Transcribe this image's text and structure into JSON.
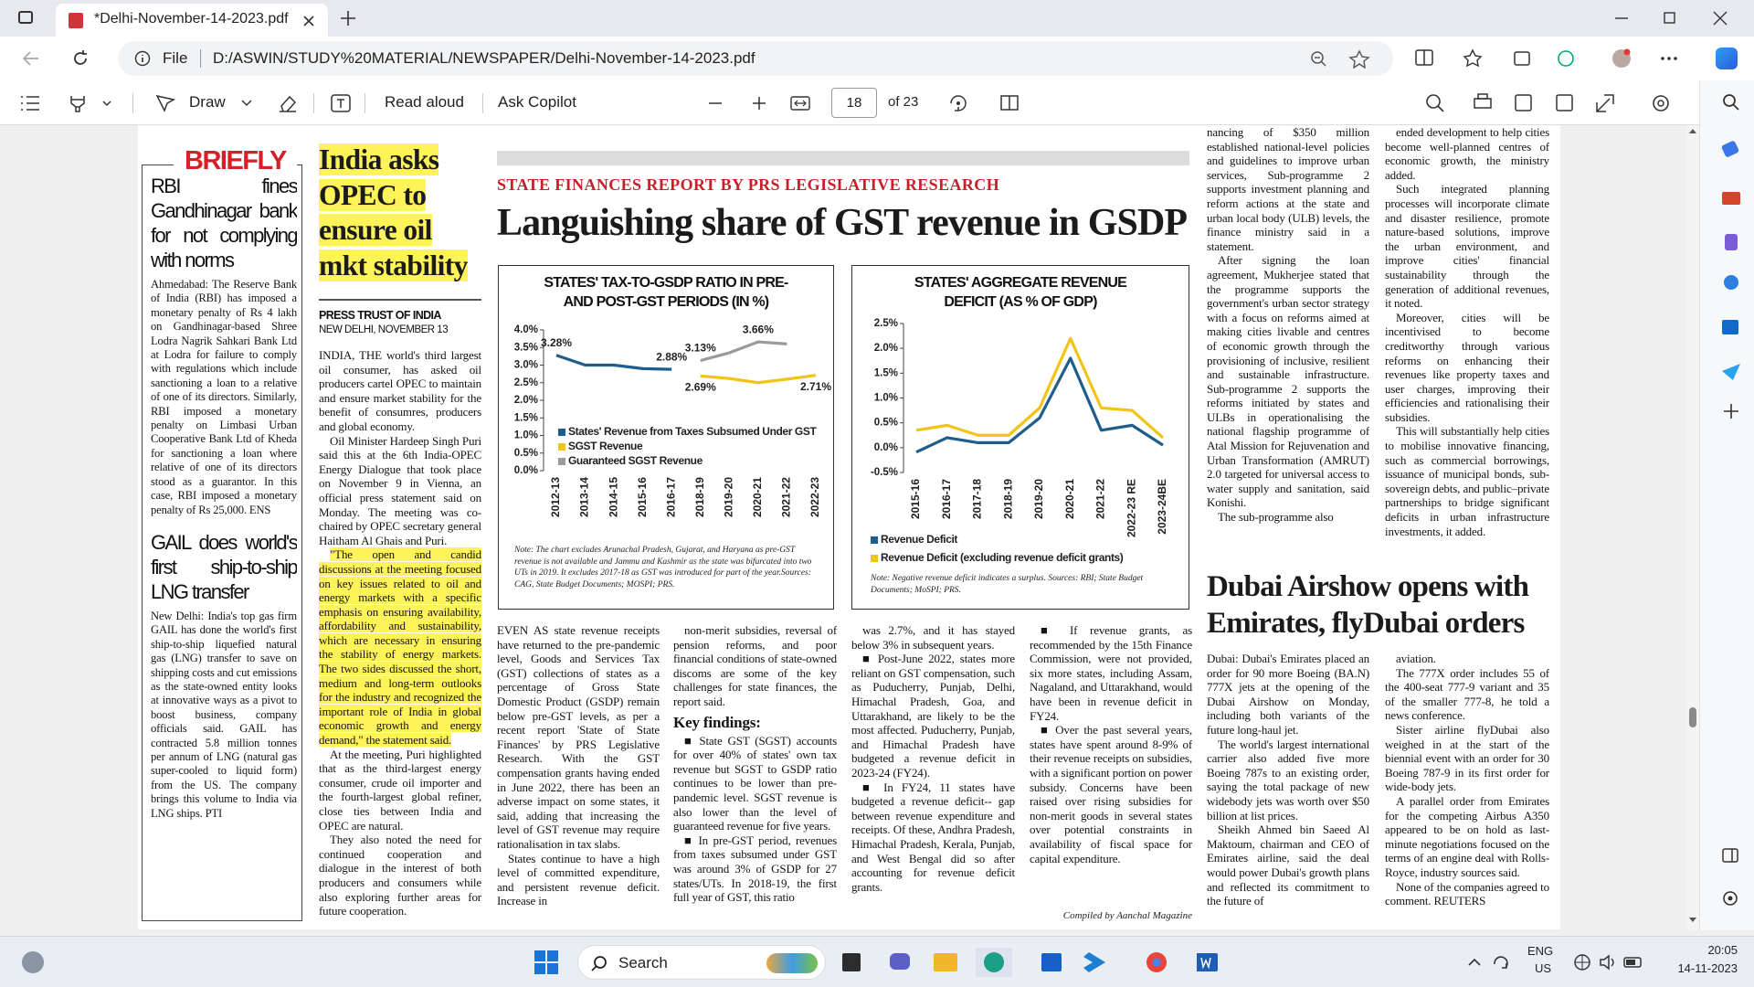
{
  "browser": {
    "tab_title": "*Delhi-November-14-2023.pdf",
    "address_label": "File",
    "address": "D:/ASWIN/STUDY%20MATERIAL/NEWSPAPER/Delhi-November-14-2023.pdf"
  },
  "toolbar": {
    "draw": "Draw",
    "read_aloud": "Read aloud",
    "ask_copilot": "Ask Copilot",
    "page_number": "18",
    "page_count": "of 23"
  },
  "newspaper": {
    "briefly": {
      "label": "BRIEFLY",
      "items": [
        {
          "headline": "RBI fines Gandhinagar bank for not complying with norms",
          "body": "Ahmedabad: The Reserve Bank of India (RBI) has imposed a monetary penalty of Rs 4 lakh on Gandhinagar-based Shree Lodra Nagrik Sahkari Bank Ltd at Lodra for failure to comply with regulations which include sanctioning a loan to a relative of one of its directors. Similarly, RBI imposed a monetary penalty on Limbasi Urban Cooperative Bank Ltd of Kheda for sanctioning a loan where relative of one of its directors stood as a guarantor. In this case, RBI imposed a monetary penalty of Rs 25,000. ENS"
        },
        {
          "headline": "GAIL does world's first ship-to-ship LNG transfer",
          "body": "New Delhi: India's top gas firm GAIL has done the world's first ship-to-ship liquefied natural gas (LNG) transfer to save on shipping costs and cut emissions as the state-owned entity looks at innovative ways as a pivot to boost business, company officials said. GAIL has contracted 5.8 million tonnes per annum of LNG (natural gas super-cooled to liquid form) from the US. The company brings this volume to India via LNG ships. PTI"
        }
      ]
    },
    "opec": {
      "headline": "India asks OPEC to ensure oil mkt stability",
      "byline": "PRESS TRUST OF INDIA",
      "dateline": "NEW DELHI, NOVEMBER 13",
      "paragraphs": [
        "INDIA, THE world's third largest oil consumer, has asked oil producers cartel OPEC to maintain and ensure market stability for the benefit of consumres, producers and global economy.",
        "Oil Minister Hardeep Singh Puri said this at the 6th India-OPEC Energy Dialogue that took place on November 9 in Vienna, an official press statement said on Monday. The meeting was co-chaired by OPEC secretary general Haitham Al Ghais and Puri.",
        "\"The open and candid discussions at the meeting focused on key issues related to oil and energy markets with a specific emphasis on ensuring availability, affordability and sustainability, which are necessary in ensuring the stability of energy markets. The two sides discussed the short, medium and long-term outlooks for the industry and recognized the important role of India in global economic growth and energy demand,\" the statement said.",
        "At the meeting, Puri highlighted that as the third-largest energy consumer, crude oil importer and the fourth-largest global refiner, close ties between India and OPEC are natural.",
        "They also noted the need for continued cooperation and dialogue in the interest of both producers and consumers while also exploring further areas for future cooperation."
      ]
    },
    "gst": {
      "kicker": "STATE FINANCES REPORT BY PRS LEGISLATIVE RESEARCH",
      "headline": "Languishing share of GST revenue in GSDP",
      "key_findings_heading": "Key findings:",
      "credit": "Compiled by Aanchal Magazine",
      "columns": [
        [
          "EVEN AS state revenue receipts have returned to the pre-pandemic level, Goods and Services Tax (GST) collections of states as a percentage of Gross State Domestic Product (GSDP) remain below pre-GST levels, as per a recent report 'State of State Finances' by PRS Legislative Research. With the GST compensation grants having ended in June 2022, there has been an adverse impact on some states, it said, adding that increasing the level of GST revenue may require rationalisation in tax slabs.",
          "States continue to have a high level of committed expenditure, and persistent revenue deficit. Increase in"
        ],
        [
          "non-merit subsidies, reversal of pension reforms, and poor financial conditions of state-owned discoms are some of the key challenges for state finances, the report said.",
          "■ State GST (SGST) accounts for over 40% of states' own tax revenue but SGST to GSDP ratio continues to be lower than pre-pandemic level. SGST revenue is also lower than the level of guaranteed revenue for five years.",
          "■ In pre-GST period, revenues from taxes subsumed under GST was around 3% of GSDP for 27 states/UTs. In 2018-19, the first full year of GST, this ratio"
        ],
        [
          "was 2.7%, and it has stayed below 3% in subsequent years.",
          "■ Post-June 2022, states more reliant on GST compensation, such as Puducherry, Punjab, Delhi, Himachal Pradesh, Goa, and Uttarakhand, are likely to be the most affected. Puducherry, Punjab, and Himachal Pradesh have budgeted a revenue deficit in 2023-24 (FY24).",
          "■ In FY24, 11 states have budgeted a revenue deficit-- gap between revenue expenditure and receipts. Of these, Andhra Pradesh, Himachal Pradesh, Kerala, Punjab, and West Bengal did so after accounting for revenue deficit grants."
        ],
        [
          "■ If revenue grants, as recommended by the 15th Finance Commission, were not provided, six more states, including Assam, Nagaland, and Uttarakhand, would have been in revenue deficit in FY24.",
          "■ Over the past several years, states have spent around 8-9% of their revenue receipts on subsidies, with a significant portion on power subsidy. Concerns have been raised over rising subsidies for non-merit goods in several states over potential constraints in availability of fiscal space for capital expenditure."
        ]
      ]
    },
    "urban": {
      "columns": [
        [
          "nancing of $350 million established national-level policies and guidelines to improve urban services, Sub-programme 2 supports investment planning and reform actions at the state and urban local body (ULB) levels, the finance ministry said in a statement.",
          "After signing the loan agreement, Mukherjee stated that the programme supports the government's urban sector strategy with a focus on reforms aimed at making cities livable and centres of economic growth through the provisioning of inclusive, resilient and sustainable infrastructure. Sub-programme 2 supports the reforms initiated by states and ULBs in operationalising the national flagship programme of Atal Mission for Rejuvenation and Urban Transformation (AMRUT) 2.0 targeted for universal access to water supply and sanitation, said Konishi.",
          "The sub-programme also"
        ],
        [
          "ended development to help cities become well-planned centres of economic growth, the ministry added.",
          "Such integrated planning processes will incorporate climate and disaster resilience, promote nature-based solutions, improve the urban environment, and improve cities' financial sustainability through the generation of additional revenues, it noted.",
          "Moreover, cities will be incentivised to become creditworthy through various reforms on enhancing their revenues like property taxes and user charges, improving their efficiencies and rationalising their subsidies.",
          "This will substantially help cities to mobilise innovative financing, such as commercial borrowings, issuance of municipal bonds, sub-sovereign debts, and public–private partnerships to bridge significant deficits in urban infrastructure investments, it added."
        ]
      ]
    },
    "dubai": {
      "headline": "Dubai Airshow opens with Emirates, flyDubai orders",
      "columns": [
        [
          "Dubai: Dubai's Emirates placed an order for 90 more Boeing (BA.N) 777X jets at the opening of the Dubai Airshow on Monday, including both variants of the future long-haul jet.",
          "The world's largest international carrier also added five more Boeing 787s to an existing order, saying the total package of new widebody jets was worth over $50 billion at list prices.",
          "Sheikh Ahmed bin Saeed Al Maktoum, chairman and CEO of Emirates airline, said the deal would power Dubai's growth plans and reflected its commitment to the future of"
        ],
        [
          "aviation.",
          "The 777X order includes 55 of the 400-seat 777-9 variant and 35 of the smaller 777-8, he told a news conference.",
          "Sister airline flyDubai also weighed in at the start of the biennial event with an order for 30 Boeing 787-9 in its first order for wide-body jets.",
          "A parallel order from Emirates for the competing Airbus A350 appeared to be on hold as last-minute negotiations focused on the terms of an engine deal with Rolls-Royce, industry sources said.",
          "None of the companies agreed to comment. REUTERS"
        ]
      ]
    }
  },
  "chart_data": [
    {
      "type": "line",
      "title": "STATES' TAX-TO-GSDP RATIO IN PRE- AND POST-GST PERIODS (IN %)",
      "note": "Note: The chart excludes Arunachal Pradesh, Gujarat, and Haryana as pre-GST revenue is not available and Jammu and Kashmir as the state was bifurcated into two UTs in 2019. It excludes 2017-18 as GST was introduced for part of the year.Sources: CAG, State Budget Documents; MOSPI; PRS.",
      "categories": [
        "2012-13",
        "2013-14",
        "2014-15",
        "2015-16",
        "2016-17",
        "2018-19",
        "2019-20",
        "2020-21",
        "2021-22",
        "2022-23"
      ],
      "series": [
        {
          "name": "States' Revenue from Taxes Subsumed Under GST",
          "color": "#1f5d8c",
          "values": [
            3.28,
            3.0,
            3.0,
            2.9,
            2.88,
            null,
            null,
            null,
            null,
            null
          ],
          "value_labels": [
            "3.28%",
            null,
            null,
            null,
            "2.88%",
            null,
            null,
            null,
            null,
            null
          ]
        },
        {
          "name": "SGST Revenue",
          "color": "#f2c417",
          "values": [
            null,
            null,
            null,
            null,
            null,
            2.69,
            2.62,
            2.5,
            2.6,
            2.71
          ],
          "value_labels": [
            null,
            null,
            null,
            null,
            null,
            "2.69%",
            null,
            null,
            null,
            "2.71%"
          ]
        },
        {
          "name": "Guaranteed SGST Revenue",
          "color": "#9a9a9a",
          "values": [
            null,
            null,
            null,
            null,
            null,
            3.13,
            3.35,
            3.66,
            3.6,
            null
          ],
          "value_labels": [
            null,
            null,
            null,
            null,
            null,
            "3.13%",
            null,
            "3.66%",
            null,
            null
          ]
        }
      ],
      "ylim": [
        0,
        4
      ],
      "yticks": [
        {
          "value": 0,
          "label": "0.0%"
        },
        {
          "value": 0.5,
          "label": "0.5%"
        },
        {
          "value": 1,
          "label": "1.0%"
        },
        {
          "value": 1.5,
          "label": "1.5%"
        },
        {
          "value": 2,
          "label": "2.0%"
        },
        {
          "value": 2.5,
          "label": "2.5%"
        },
        {
          "value": 3,
          "label": "3.0%"
        },
        {
          "value": 3.5,
          "label": "3.5%"
        },
        {
          "value": 4,
          "label": "4.0%"
        }
      ],
      "grid": false,
      "legend": "inside bottom"
    },
    {
      "type": "line",
      "title": "STATES' AGGREGATE REVENUE DEFICIT (AS % OF GDP)",
      "note": "Note: Negative revenue deficit indicates a surplus. Sources: RBI; State Budget Documents; MoSPI; PRS.",
      "categories": [
        "2015-16",
        "2016-17",
        "2017-18",
        "2018-19",
        "2019-20",
        "2020-21",
        "2021-22",
        "2022-23 RE",
        "2023-24BE"
      ],
      "series": [
        {
          "name": "Revenue Deficit",
          "color": "#1f5d8c",
          "values": [
            -0.09,
            0.2,
            0.1,
            0.1,
            0.6,
            1.8,
            0.35,
            0.45,
            0.05
          ]
        },
        {
          "name": "Revenue Deficit (excluding revenue deficit grants)",
          "color": "#f2c417",
          "values": [
            0.35,
            0.45,
            0.25,
            0.25,
            0.8,
            2.2,
            0.8,
            0.75,
            0.2
          ]
        }
      ],
      "ylim": [
        -0.5,
        2.5
      ],
      "yticks": [
        {
          "value": -0.5,
          "label": "-0.5%"
        },
        {
          "value": 0,
          "label": "0.0%"
        },
        {
          "value": 0.5,
          "label": "0.5%"
        },
        {
          "value": 1,
          "label": "1.0%"
        },
        {
          "value": 1.5,
          "label": "1.5%"
        },
        {
          "value": 2,
          "label": "2.0%"
        },
        {
          "value": 2.5,
          "label": "2.5%"
        }
      ],
      "grid": false,
      "legend": "bottom"
    }
  ],
  "taskbar": {
    "search": "Search",
    "language": "ENG",
    "region": "US",
    "time": "20:05",
    "date": "14-11-2023"
  }
}
